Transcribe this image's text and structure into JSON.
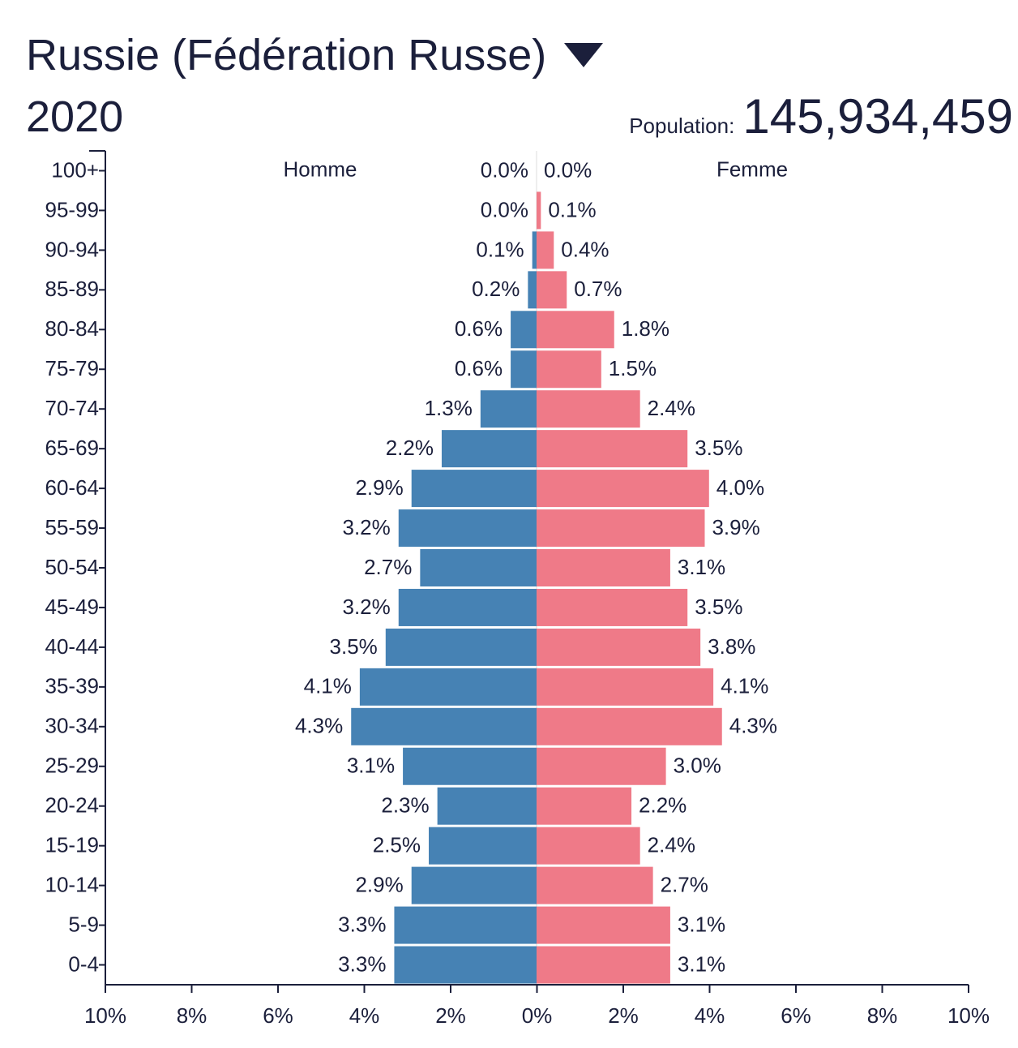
{
  "header": {
    "title": "Russie (Fédération Russe)",
    "year": "2020",
    "population_label": "Population:",
    "population_value": "145,934,459"
  },
  "colors": {
    "male": "#4682b4",
    "female": "#ef7a88",
    "text": "#1b1f3b"
  },
  "chart_data": {
    "type": "bar",
    "orientation": "horizontal",
    "legend_left": "Homme",
    "legend_right": "Femme",
    "categories": [
      "100+",
      "95-99",
      "90-94",
      "85-89",
      "80-84",
      "75-79",
      "70-74",
      "65-69",
      "60-64",
      "55-59",
      "50-54",
      "45-49",
      "40-44",
      "35-39",
      "30-34",
      "25-29",
      "20-24",
      "15-19",
      "10-14",
      "5-9",
      "0-4"
    ],
    "series": [
      {
        "name": "Homme",
        "values": [
          0.0,
          0.0,
          0.1,
          0.2,
          0.6,
          0.6,
          1.3,
          2.2,
          2.9,
          3.2,
          2.7,
          3.2,
          3.5,
          4.1,
          4.3,
          3.1,
          2.3,
          2.5,
          2.9,
          3.3,
          3.3
        ],
        "labels": [
          "0.0%",
          "0.0%",
          "0.1%",
          "0.2%",
          "0.6%",
          "0.6%",
          "1.3%",
          "2.2%",
          "2.9%",
          "3.2%",
          "2.7%",
          "3.2%",
          "3.5%",
          "4.1%",
          "4.3%",
          "3.1%",
          "2.3%",
          "2.5%",
          "2.9%",
          "3.3%",
          "3.3%"
        ]
      },
      {
        "name": "Femme",
        "values": [
          0.0,
          0.1,
          0.4,
          0.7,
          1.8,
          1.5,
          2.4,
          3.5,
          4.0,
          3.9,
          3.1,
          3.5,
          3.8,
          4.1,
          4.3,
          3.0,
          2.2,
          2.4,
          2.7,
          3.1,
          3.1
        ],
        "labels": [
          "0.0%",
          "0.1%",
          "0.4%",
          "0.7%",
          "1.8%",
          "1.5%",
          "2.4%",
          "3.5%",
          "4.0%",
          "3.9%",
          "3.1%",
          "3.5%",
          "3.8%",
          "4.1%",
          "4.3%",
          "3.0%",
          "2.2%",
          "2.4%",
          "2.7%",
          "3.1%",
          "3.1%"
        ]
      }
    ],
    "xlim": [
      -10,
      10
    ],
    "x_ticks": [
      "10%",
      "8%",
      "6%",
      "4%",
      "2%",
      "0%",
      "2%",
      "4%",
      "6%",
      "8%",
      "10%"
    ],
    "grid": false
  }
}
